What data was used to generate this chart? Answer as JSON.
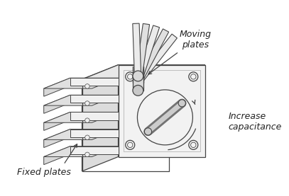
{
  "background_color": "#ffffff",
  "line_color": "#444444",
  "face_front": "#f2f2f2",
  "face_top": "#e8e8e8",
  "face_side": "#dcdcdc",
  "plate_face": "#f0f0f0",
  "plate_top": "#e0e0e0",
  "plate_side": "#d8d8d8",
  "labels": {
    "moving_plates": "Moving\nplates",
    "fixed_plates": "Fixed plates",
    "increase_cap": "Increase\ncapacitance"
  },
  "fontsize": 9,
  "lw": 0.9
}
